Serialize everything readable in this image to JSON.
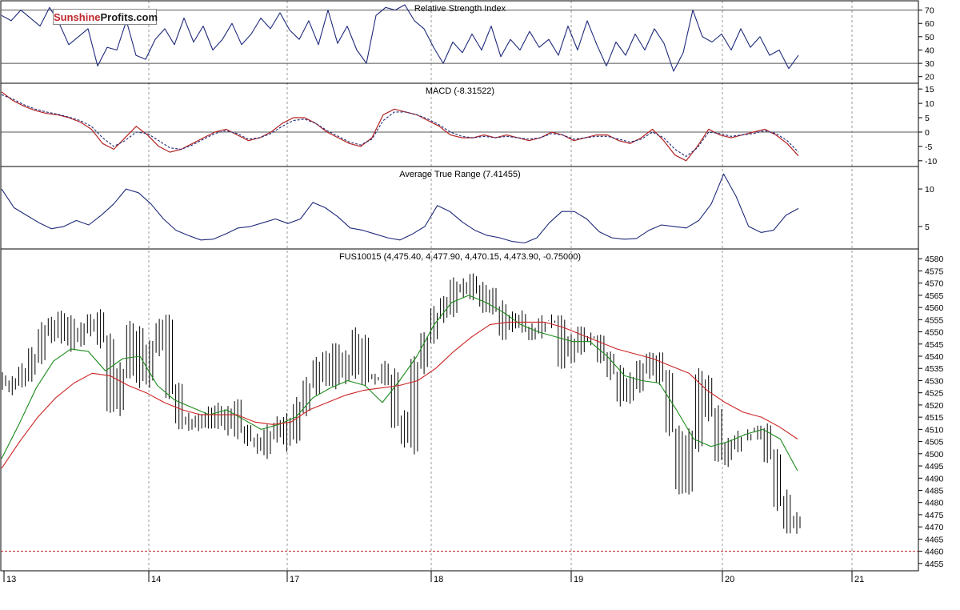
{
  "logo": {
    "part1": "Sunshine",
    "part2": "Profits.com"
  },
  "colors": {
    "price_bars": "#000000",
    "sma_fast": "#1a8a1a",
    "sma_slow": "#cc2222",
    "indicator": "#1f2a7a",
    "macd_signal": "#b22222",
    "support": "#b22222",
    "grid": "#9a9a9a"
  },
  "x_axis": {
    "labels": [
      "13",
      "14",
      "17",
      "18",
      "19",
      "20",
      "21"
    ]
  },
  "chart_data": [
    {
      "type": "line",
      "title": "Relative Strength Index",
      "ylim": [
        15,
        77
      ],
      "y_ticks": [
        70,
        60,
        50,
        40,
        30,
        20
      ],
      "reference_lines": [
        70,
        30
      ],
      "series": [
        {
          "values": [
            66,
            62,
            70,
            64,
            58,
            72,
            60,
            44,
            50,
            56,
            28,
            42,
            40,
            62,
            36,
            33,
            48,
            56,
            44,
            64,
            46,
            58,
            40,
            48,
            60,
            44,
            52,
            64,
            56,
            68,
            55,
            48,
            62,
            44,
            70,
            45,
            58,
            40,
            30,
            66,
            72,
            70,
            74,
            62,
            56,
            42,
            30,
            46,
            38,
            52,
            40,
            58,
            35,
            48,
            40,
            54,
            42,
            48,
            36,
            58,
            40,
            62,
            44,
            28,
            46,
            36,
            52,
            40,
            56,
            45,
            24,
            38,
            70,
            50,
            46,
            52,
            40,
            56,
            42,
            50,
            36,
            40,
            26,
            36
          ]
        }
      ]
    },
    {
      "type": "line",
      "title": "MACD (-8.31522)",
      "ylim": [
        -12,
        17
      ],
      "y_ticks": [
        15,
        10,
        5,
        0,
        -5,
        -10
      ],
      "reference_lines": [
        0
      ],
      "series": [
        {
          "values": [
            14,
            11,
            9,
            7.5,
            6.5,
            6,
            5,
            3.5,
            1,
            -4,
            -6,
            -2,
            2,
            -1,
            -5,
            -7,
            -6,
            -4,
            -2,
            0,
            1,
            -1,
            -3,
            -2,
            0,
            3,
            5,
            5,
            3,
            0,
            -2,
            -4,
            -5,
            -2,
            6,
            8,
            7,
            6,
            4,
            2,
            -1,
            -2,
            -2,
            -1,
            -2,
            -1,
            -2,
            -3,
            -2,
            0,
            -1,
            -3,
            -2,
            -1,
            -1,
            -3,
            -4,
            -2,
            1,
            -3,
            -8,
            -10,
            -5,
            1,
            -1,
            -2,
            -1,
            0,
            1,
            -1,
            -4,
            -8.3
          ]
        },
        {
          "values": [
            13,
            11.5,
            9.5,
            8,
            7,
            6.2,
            5.2,
            4,
            2,
            -2,
            -5,
            -3,
            0,
            -0.5,
            -3,
            -5.5,
            -6,
            -4.5,
            -2.5,
            -0.5,
            0.5,
            -0.5,
            -2.5,
            -2,
            -0.5,
            2,
            4,
            4.5,
            3,
            0.5,
            -1.5,
            -3.5,
            -4.5,
            -2.5,
            4,
            7,
            7,
            6,
            4.5,
            2.5,
            0,
            -1.5,
            -2,
            -1.5,
            -2,
            -1.5,
            -2,
            -2.5,
            -2,
            -0.5,
            -1,
            -2.5,
            -2,
            -1.5,
            -1.5,
            -2.5,
            -3.5,
            -2.5,
            0,
            -2,
            -6,
            -8.5,
            -5.5,
            0,
            -0.5,
            -1.5,
            -1,
            -0.5,
            0.5,
            -0.5,
            -3,
            -7
          ]
        }
      ]
    },
    {
      "type": "line",
      "title": "Average True Range (7.41455)",
      "ylim": [
        2,
        13
      ],
      "y_ticks": [
        10,
        5
      ],
      "series": [
        {
          "values": [
            10,
            7.5,
            6.5,
            5.5,
            4.7,
            5,
            5.8,
            5.2,
            6.5,
            8,
            10,
            9.5,
            8,
            6,
            4.5,
            3.8,
            3.2,
            3.3,
            4,
            4.8,
            5,
            5.5,
            6,
            5.4,
            6,
            8.2,
            7.5,
            6.3,
            4.8,
            4.5,
            4,
            3.5,
            3.2,
            4,
            5,
            7.8,
            7,
            5.6,
            4.5,
            3.8,
            3.5,
            3,
            2.8,
            3.5,
            5.5,
            7,
            7,
            6,
            4.3,
            3.5,
            3.3,
            3.4,
            4.5,
            5.2,
            5,
            4.8,
            5.8,
            8,
            12,
            9,
            5,
            4.2,
            4.5,
            6.5,
            7.4
          ]
        }
      ]
    },
    {
      "type": "line",
      "title": "FUS10015 (4,475.40, 4,477.90, 4,470.15, 4,473.90, -0.75000)",
      "ylim": [
        4452,
        4584
      ],
      "y_ticks": [
        4580,
        4575,
        4570,
        4565,
        4560,
        4555,
        4550,
        4545,
        4540,
        4535,
        4530,
        4525,
        4520,
        4515,
        4510,
        4505,
        4500,
        4495,
        4490,
        4485,
        4480,
        4475,
        4470,
        4465,
        4460,
        4455
      ],
      "support_level": 4460,
      "series": [
        {
          "values": [
            4530,
            4529,
            4533,
            4540,
            4552,
            4548,
            4555,
            4547,
            4550,
            4554,
            4546,
            4520,
            4535,
            4550,
            4530,
            4545,
            4552,
            4525,
            4515,
            4511,
            4513,
            4517,
            4512,
            4518,
            4510,
            4505,
            4503,
            4510,
            4512,
            4506,
            4520,
            4527,
            4538,
            4530,
            4540,
            4533,
            4547,
            4530,
            4530,
            4533,
            4515,
            4505,
            4535,
            4548,
            4558,
            4560,
            4567,
            4570,
            4566,
            4563,
            4560,
            4552,
            4555,
            4552,
            4550,
            4555,
            4553,
            4540,
            4545,
            4548,
            4547,
            4540,
            4533,
            4523,
            4530,
            4535,
            4537,
            4530,
            4510,
            4488,
            4505,
            4530,
            4518,
            4500,
            4505,
            4507,
            4508,
            4510,
            4500,
            4480,
            4470,
            4474
          ]
        },
        {
          "values": [
            4498,
            4512,
            4527,
            4538,
            4543,
            4542,
            4534,
            4539,
            4540,
            4528,
            4522,
            4519,
            4516,
            4518,
            4514,
            4510,
            4512,
            4515,
            4523,
            4527,
            4530,
            4528,
            4521,
            4530,
            4540,
            4553,
            4562,
            4565,
            4562,
            4558,
            4553,
            4550,
            4548,
            4546,
            4546,
            4540,
            4532,
            4530,
            4529,
            4518,
            4506,
            4503,
            4505,
            4508,
            4510,
            4506,
            4493
          ]
        },
        {
          "values": [
            4494,
            4505,
            4515,
            4523,
            4529,
            4533,
            4532,
            4528,
            4525,
            4521,
            4518,
            4516,
            4516,
            4516,
            4513,
            4512,
            4513,
            4518,
            4521,
            4524,
            4526,
            4527,
            4528,
            4530,
            4535,
            4542,
            4548,
            4553,
            4554,
            4554,
            4554,
            4552,
            4549,
            4546,
            4543,
            4541,
            4539,
            4536,
            4533,
            4526,
            4521,
            4517,
            4515,
            4511,
            4506
          ]
        }
      ]
    }
  ]
}
